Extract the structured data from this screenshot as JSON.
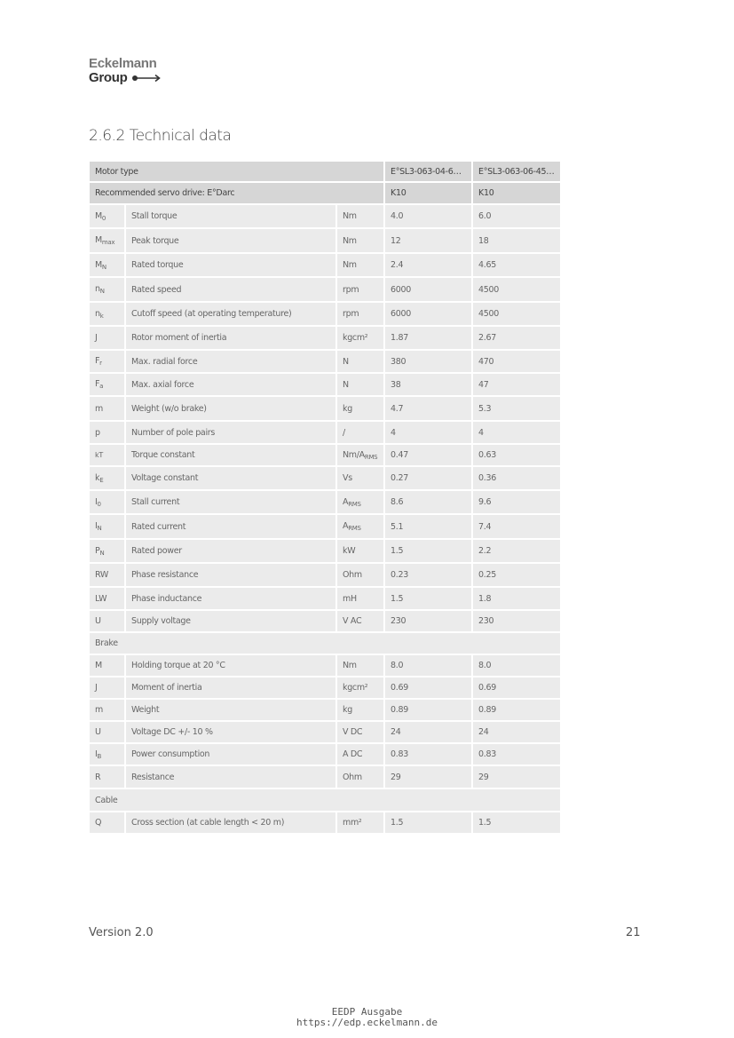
{
  "logo": {
    "line1": "Eckelmann",
    "line2": "Group"
  },
  "section_title": "2.6.2 Technical data",
  "table": {
    "header": [
      {
        "label": "Motor type",
        "v1": "E°SL3-063-04-60…",
        "v2": "E°SL3-063-06-45…"
      },
      {
        "label": "Recommended servo drive: E°Darc",
        "v1": "K10",
        "v2": "K10"
      }
    ],
    "rows": [
      {
        "sym": "M",
        "sub": "0",
        "desc": "Stall torque",
        "unit": "Nm",
        "unit_sub": "",
        "v1": "4.0",
        "v2": "6.0"
      },
      {
        "sym": "M",
        "sub": "max",
        "desc": "Peak torque",
        "unit": "Nm",
        "unit_sub": "",
        "v1": "12",
        "v2": "18"
      },
      {
        "sym": "M",
        "sub": "N",
        "desc": "Rated torque",
        "unit": "Nm",
        "unit_sub": "",
        "v1": "2.4",
        "v2": "4.65"
      },
      {
        "sym": "n",
        "sub": "N",
        "desc": "Rated speed",
        "unit": "rpm",
        "unit_sub": "",
        "v1": "6000",
        "v2": "4500"
      },
      {
        "sym": "n",
        "sub": "k",
        "desc": "Cutoff speed (at operating temperature)",
        "unit": "rpm",
        "unit_sub": "",
        "v1": "6000",
        "v2": "4500"
      },
      {
        "sym": "J",
        "sub": "",
        "desc": "Rotor moment of inertia",
        "unit": "kgcm²",
        "unit_sub": "",
        "v1": "1.87",
        "v2": "2.67"
      },
      {
        "sym": "F",
        "sub": "r",
        "desc": "Max. radial force",
        "unit": "N",
        "unit_sub": "",
        "v1": "380",
        "v2": "470"
      },
      {
        "sym": "F",
        "sub": "a",
        "desc": "Max. axial force",
        "unit": "N",
        "unit_sub": "",
        "v1": "38",
        "v2": "47"
      },
      {
        "sym": "m",
        "sub": "",
        "desc": "Weight (w/o brake)",
        "unit": "kg",
        "unit_sub": "",
        "v1": "4.7",
        "v2": "5.3"
      },
      {
        "sym": "p",
        "sub": "",
        "desc": "Number of pole pairs",
        "unit": "/",
        "unit_sub": "",
        "v1": "4",
        "v2": "4"
      },
      {
        "sym": "kT",
        "sub": "",
        "desc": "Torque constant",
        "unit": "Nm/A",
        "unit_sub": "RMS",
        "v1": "0.47",
        "v2": "0.63"
      },
      {
        "sym": "k",
        "sub": "E",
        "desc": "Voltage constant",
        "unit": "Vs",
        "unit_sub": "",
        "v1": "0.27",
        "v2": "0.36"
      },
      {
        "sym": "I",
        "sub": "0",
        "desc": "Stall current",
        "unit": "A",
        "unit_sub": "RMS",
        "v1": "8.6",
        "v2": "9.6"
      },
      {
        "sym": "I",
        "sub": "N",
        "desc": "Rated current",
        "unit": "A",
        "unit_sub": "RMS",
        "v1": "5.1",
        "v2": "7.4"
      },
      {
        "sym": "P",
        "sub": "N",
        "desc": "Rated power",
        "unit": "kW",
        "unit_sub": "",
        "v1": "1.5",
        "v2": "2.2"
      },
      {
        "sym": "RW",
        "sub": "",
        "desc": "Phase resistance",
        "unit": "Ohm",
        "unit_sub": "",
        "v1": "0.23",
        "v2": "0.25"
      },
      {
        "sym": "LW",
        "sub": "",
        "desc": "Phase inductance",
        "unit": "mH",
        "unit_sub": "",
        "v1": "1.5",
        "v2": "1.8"
      },
      {
        "sym": "U",
        "sub": "",
        "desc": "Supply voltage",
        "unit": "V AC",
        "unit_sub": "",
        "v1": "230",
        "v2": "230"
      },
      {
        "section": "Brake"
      },
      {
        "sym": "M",
        "sub": "",
        "desc": "Holding torque at 20 °C",
        "unit": "Nm",
        "unit_sub": "",
        "v1": "8.0",
        "v2": "8.0"
      },
      {
        "sym": "J",
        "sub": "",
        "desc": "Moment of inertia",
        "unit": "kgcm²",
        "unit_sub": "",
        "v1": "0.69",
        "v2": "0.69"
      },
      {
        "sym": "m",
        "sub": "",
        "desc": "Weight",
        "unit": "kg",
        "unit_sub": "",
        "v1": "0.89",
        "v2": "0.89"
      },
      {
        "sym": "U",
        "sub": "",
        "desc": "Voltage DC +/- 10 %",
        "unit": "V DC",
        "unit_sub": "",
        "v1": "24",
        "v2": "24"
      },
      {
        "sym": "I",
        "sub": "B",
        "desc": "Power consumption",
        "unit": "A DC",
        "unit_sub": "",
        "v1": "0.83",
        "v2": "0.83"
      },
      {
        "sym": "R",
        "sub": "",
        "desc": "Resistance",
        "unit": "Ohm",
        "unit_sub": "",
        "v1": "29",
        "v2": "29"
      },
      {
        "section": "Cable"
      },
      {
        "sym": "Q",
        "sub": "",
        "desc": "Cross section (at cable length < 20 m)",
        "unit": "mm²",
        "unit_sub": "",
        "v1": "1.5",
        "v2": "1.5"
      }
    ]
  },
  "footer": {
    "version": "Version 2.0",
    "page": "21"
  },
  "stamp": {
    "line1": "EEDP Ausgabe",
    "line2": "https://edp.eckelmann.de"
  }
}
